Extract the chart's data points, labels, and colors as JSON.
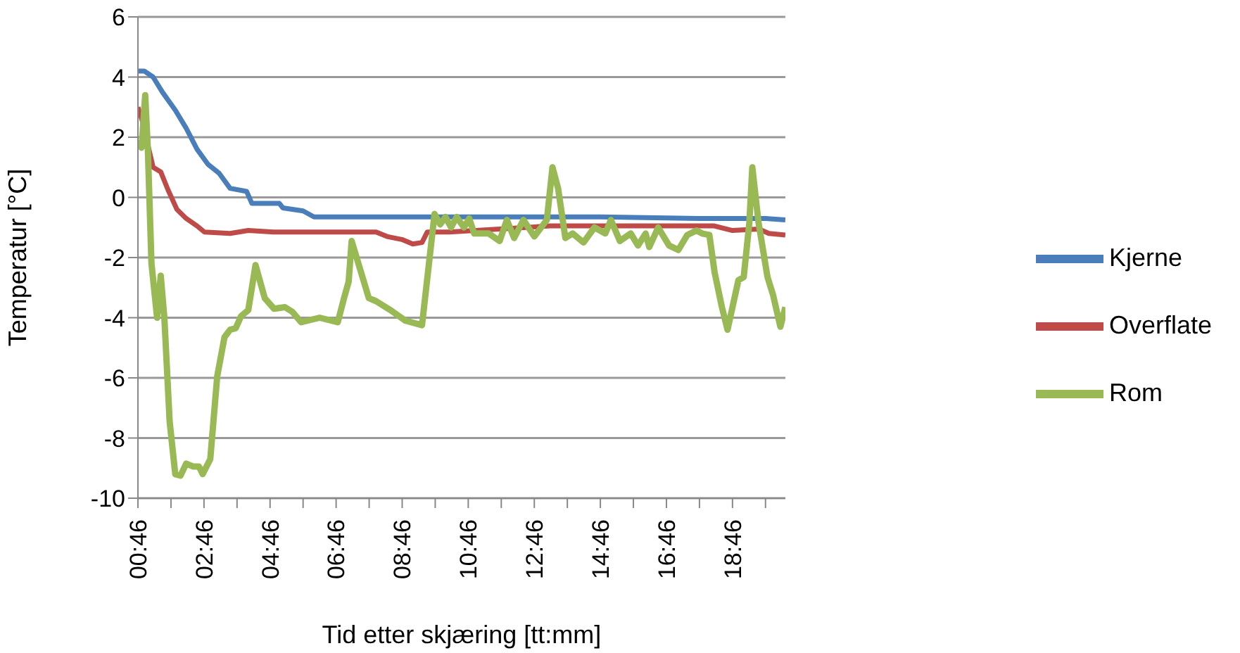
{
  "chart_data": {
    "type": "line",
    "xlabel": "Tid etter skjæring [tt:mm]",
    "ylabel": "Temperatur [°C]",
    "xlim": [
      0.77,
      20.37
    ],
    "xticks": [
      {
        "value": 0.77,
        "label": "00:46"
      },
      {
        "value": 1.77,
        "label": null
      },
      {
        "value": 2.77,
        "label": "02:46"
      },
      {
        "value": 3.77,
        "label": null
      },
      {
        "value": 4.77,
        "label": "04:46"
      },
      {
        "value": 5.77,
        "label": null
      },
      {
        "value": 6.77,
        "label": "06:46"
      },
      {
        "value": 7.77,
        "label": null
      },
      {
        "value": 8.77,
        "label": "08:46"
      },
      {
        "value": 9.77,
        "label": null
      },
      {
        "value": 10.77,
        "label": "10:46"
      },
      {
        "value": 11.77,
        "label": null
      },
      {
        "value": 12.77,
        "label": "12:46"
      },
      {
        "value": 13.77,
        "label": null
      },
      {
        "value": 14.77,
        "label": "14:46"
      },
      {
        "value": 15.77,
        "label": null
      },
      {
        "value": 16.77,
        "label": "16:46"
      },
      {
        "value": 17.77,
        "label": null
      },
      {
        "value": 18.77,
        "label": "18:46"
      },
      {
        "value": 19.77,
        "label": null
      }
    ],
    "ylim": [
      -10,
      6
    ],
    "yticks": [
      -10,
      -8,
      -6,
      -4,
      -2,
      0,
      2,
      4,
      6
    ],
    "grid": "y",
    "legend": "right",
    "series": [
      {
        "name": "Kjerne",
        "color": "#4a7ebb",
        "x": [
          0.77,
          0.96,
          1.23,
          1.51,
          1.9,
          2.23,
          2.56,
          2.89,
          3.23,
          3.56,
          4.06,
          4.22,
          5.05,
          5.16,
          5.77,
          6.1,
          10.77,
          14.77,
          17.77,
          19.77,
          20.37
        ],
        "values": [
          4.2,
          4.2,
          4.0,
          3.5,
          2.9,
          2.3,
          1.6,
          1.1,
          0.8,
          0.3,
          0.2,
          -0.2,
          -0.2,
          -0.35,
          -0.45,
          -0.65,
          -0.65,
          -0.65,
          -0.7,
          -0.7,
          -0.75
        ]
      },
      {
        "name": "Overflate",
        "color": "#be4b48",
        "x": [
          0.77,
          0.9,
          1.07,
          1.23,
          1.46,
          1.68,
          1.95,
          2.23,
          2.56,
          2.78,
          3.56,
          4.11,
          4.88,
          7.98,
          8.31,
          8.76,
          9.09,
          9.37,
          9.53,
          10.19,
          13.25,
          18.22,
          18.77,
          19.57,
          19.87,
          20.37
        ],
        "values": [
          3.0,
          2.55,
          1.75,
          1.0,
          0.85,
          0.25,
          -0.4,
          -0.7,
          -0.95,
          -1.15,
          -1.2,
          -1.1,
          -1.15,
          -1.15,
          -1.3,
          -1.4,
          -1.55,
          -1.5,
          -1.15,
          -1.15,
          -0.95,
          -0.95,
          -1.1,
          -1.05,
          -1.2,
          -1.25
        ]
      },
      {
        "name": "Rom",
        "color": "#98b954",
        "x": [
          0.77,
          0.88,
          0.99,
          1.07,
          1.18,
          1.35,
          1.46,
          1.57,
          1.73,
          1.9,
          2.06,
          2.23,
          2.45,
          2.62,
          2.73,
          2.96,
          3.17,
          3.39,
          3.56,
          3.73,
          3.89,
          4.11,
          4.33,
          4.61,
          4.89,
          5.22,
          5.44,
          5.71,
          6.27,
          6.82,
          7.01,
          7.15,
          7.24,
          7.76,
          7.98,
          8.42,
          8.87,
          9.37,
          9.75,
          9.92,
          10.08,
          10.25,
          10.42,
          10.64,
          10.8,
          10.95,
          11.39,
          11.72,
          11.94,
          12.16,
          12.44,
          12.77,
          13.15,
          13.32,
          13.49,
          13.71,
          13.93,
          14.26,
          14.59,
          14.92,
          15.09,
          15.36,
          15.69,
          15.91,
          16.14,
          16.25,
          16.52,
          16.85,
          17.13,
          17.4,
          17.68,
          17.85,
          18.07,
          18.23,
          18.45,
          18.62,
          18.84,
          18.95,
          19.11,
          19.28,
          19.37,
          19.56,
          19.83,
          20.0,
          20.22,
          20.37
        ],
        "values": [
          1.9,
          1.65,
          3.4,
          1.6,
          -2.2,
          -4.0,
          -2.6,
          -4.0,
          -7.45,
          -9.2,
          -9.25,
          -8.85,
          -8.95,
          -8.95,
          -9.2,
          -8.7,
          -5.95,
          -4.65,
          -4.4,
          -4.35,
          -3.95,
          -3.75,
          -2.25,
          -3.35,
          -3.7,
          -3.65,
          -3.8,
          -4.15,
          -4.0,
          -4.15,
          -3.35,
          -2.8,
          -1.45,
          -3.35,
          -3.45,
          -3.75,
          -4.1,
          -4.25,
          -0.55,
          -0.9,
          -0.65,
          -1.0,
          -0.65,
          -1.0,
          -0.7,
          -1.2,
          -1.2,
          -1.45,
          -0.75,
          -1.35,
          -0.75,
          -1.3,
          -0.75,
          1.0,
          0.3,
          -1.35,
          -1.2,
          -1.5,
          -1.0,
          -1.2,
          -0.75,
          -1.45,
          -1.2,
          -1.6,
          -1.2,
          -1.65,
          -1.0,
          -1.6,
          -1.75,
          -1.25,
          -1.1,
          -1.2,
          -1.25,
          -2.5,
          -3.65,
          -4.4,
          -3.3,
          -2.75,
          -2.65,
          -0.85,
          1.0,
          -0.85,
          -2.65,
          -3.25,
          -4.3,
          -3.65
        ]
      }
    ]
  }
}
